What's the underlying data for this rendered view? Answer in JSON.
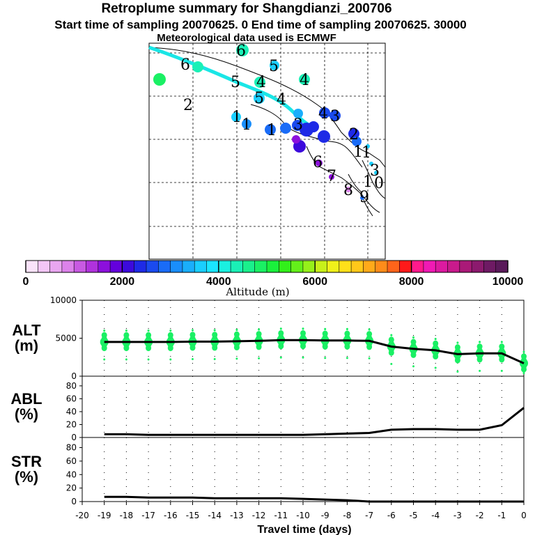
{
  "titles": {
    "line1": "Retroplume summary for Shangdianzi_200706",
    "line2": "Start time of sampling 20070625.    0     End time of sampling 20070625. 30000",
    "line3": "Meteorological data used is ECMWF"
  },
  "colorbar": {
    "label": "Altitude (m)",
    "ticks": [
      "0",
      "2000",
      "4000",
      "6000",
      "8000",
      "10000"
    ],
    "colors": [
      "#fbe3fb",
      "#f3c6f6",
      "#e9a6f0",
      "#dc82ea",
      "#c85ae2",
      "#b032dc",
      "#8c10dc",
      "#6400dc",
      "#3c0adc",
      "#1e2ae6",
      "#1a4aef",
      "#1a6cf7",
      "#1a8efb",
      "#1aaefb",
      "#1aceff",
      "#1ae6ff",
      "#1af0e0",
      "#1af0b6",
      "#1af08c",
      "#1af064",
      "#1af03c",
      "#32f01a",
      "#64f01a",
      "#96f01a",
      "#c8f01a",
      "#f0f01a",
      "#ffe01a",
      "#ffc81a",
      "#ffaa1a",
      "#ff8c1a",
      "#ff641a",
      "#ff1a1a",
      "#ff1a8c",
      "#f01ab4",
      "#dc1aa0",
      "#c81a8c",
      "#aa1a78",
      "#8c1a6e",
      "#6e1a64",
      "#5a1a5a"
    ]
  },
  "map_labels": [
    "6",
    "6",
    "5",
    "2",
    "5",
    "4",
    "4",
    "5",
    "4",
    "1",
    "1",
    "1",
    "3",
    "4",
    "3",
    "2",
    "1",
    "6",
    "7",
    "8",
    "9",
    "1",
    "3",
    "1",
    "0"
  ],
  "chart_data": [
    {
      "type": "line",
      "title": "ALT (m)",
      "ylabel_line1": "ALT",
      "ylabel_line2": "(m)",
      "ylim": [
        0,
        10000
      ],
      "yticks": [
        "10000",
        "5000",
        "0"
      ],
      "x": [
        -19,
        -18,
        -17,
        -16,
        -15,
        -14,
        -13,
        -12,
        -11,
        -10,
        -9,
        -8,
        -7,
        -6,
        -5,
        -4,
        -3,
        -2,
        -1,
        0
      ],
      "values": [
        4500,
        4500,
        4500,
        4500,
        4550,
        4550,
        4600,
        4650,
        4750,
        4750,
        4700,
        4700,
        4650,
        3900,
        3600,
        3400,
        2900,
        3000,
        3000,
        1700
      ],
      "scatter_color": "#1af064"
    },
    {
      "type": "line",
      "title": "ABL (%)",
      "ylabel_line1": "ABL",
      "ylabel_line2": "(%)",
      "ylim": [
        0,
        95
      ],
      "yticks": [
        "80",
        "60",
        "40",
        "20",
        "0"
      ],
      "x": [
        -19,
        -18,
        -17,
        -16,
        -15,
        -14,
        -13,
        -12,
        -11,
        -10,
        -9,
        -8,
        -7,
        -6,
        -5,
        -4,
        -3,
        -2,
        -1,
        0
      ],
      "values": [
        5,
        5,
        4,
        4,
        4,
        4,
        4,
        4,
        4,
        4,
        5,
        6,
        7,
        12,
        13,
        13,
        12,
        12,
        19,
        46
      ]
    },
    {
      "type": "line",
      "title": "STR (%)",
      "ylabel_line1": "STR",
      "ylabel_line2": "(%)",
      "ylim": [
        0,
        95
      ],
      "yticks": [
        "80",
        "60",
        "40",
        "20",
        "0"
      ],
      "x": [
        -19,
        -18,
        -17,
        -16,
        -15,
        -14,
        -13,
        -12,
        -11,
        -10,
        -9,
        -8,
        -7,
        -6,
        -5,
        -4,
        -3,
        -2,
        -1,
        0
      ],
      "values": [
        7,
        7,
        6,
        6,
        6,
        5,
        5,
        5,
        5,
        4,
        3,
        2,
        0,
        0,
        0,
        0,
        0,
        0,
        0,
        0
      ]
    }
  ],
  "xaxis": {
    "label": "Travel time (days)",
    "ticks": [
      "-20",
      "-19",
      "-18",
      "-17",
      "-16",
      "-15",
      "-14",
      "-13",
      "-12",
      "-11",
      "-10",
      "-9",
      "-8",
      "-7",
      "-6",
      "-5",
      "-4",
      "-3",
      "-2",
      "-1",
      "0"
    ]
  }
}
